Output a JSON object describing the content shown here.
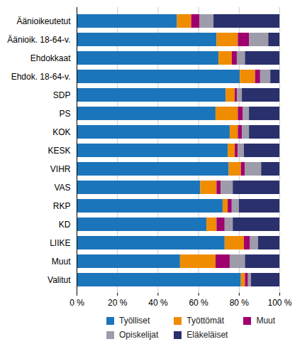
{
  "chart_data": {
    "type": "bar",
    "orientation": "horizontal",
    "stacked": true,
    "grid": true,
    "categories": [
      "Äänioikeutetut",
      "Äänioik. 18-64-v.",
      "Ehdokkaat",
      "Ehdok. 18-64-v.",
      "SDP",
      "PS",
      "KOK",
      "KESK",
      "VIHR",
      "VAS",
      "RKP",
      "KD",
      "LIIKE",
      "Muut",
      "Valitut"
    ],
    "series": [
      {
        "name": "Työlliset",
        "color": "#1b75bb",
        "values": [
          49.5,
          69,
          70,
          80.5,
          73.5,
          68.5,
          75.5,
          74.5,
          75,
          61,
          72,
          64,
          73,
          51,
          81
        ]
      },
      {
        "name": "Työttömät",
        "color": "#f08c00",
        "values": [
          7,
          10.5,
          6.5,
          7.5,
          4.5,
          11,
          4,
          3.5,
          6,
          8,
          2.5,
          5,
          9.5,
          17.5,
          2
        ]
      },
      {
        "name": "Muut",
        "color": "#a0006e",
        "values": [
          4,
          5.5,
          2.5,
          2.5,
          1,
          2.5,
          2,
          1.5,
          2,
          2,
          2,
          4,
          3,
          7,
          1.5
        ]
      },
      {
        "name": "Opiskelijat",
        "color": "#9e9caa",
        "values": [
          7,
          9.5,
          4,
          5,
          2.5,
          3,
          3.5,
          3,
          8,
          6,
          3.5,
          4,
          4,
          7.5,
          1.5
        ]
      },
      {
        "name": "Eläkeläiset",
        "color": "#2a306c",
        "values": [
          32.5,
          5.5,
          17,
          4.5,
          18.5,
          15,
          15,
          17.5,
          9,
          23,
          20,
          23,
          10.5,
          17,
          14
        ]
      }
    ],
    "xlim": [
      0,
      100
    ],
    "xticks": [
      {
        "value": 0,
        "label": "0 %"
      },
      {
        "value": 20,
        "label": "20 %"
      },
      {
        "value": 40,
        "label": "40 %"
      },
      {
        "value": 60,
        "label": "60 %"
      },
      {
        "value": 80,
        "label": "80 %"
      },
      {
        "value": 100,
        "label": "100 %"
      }
    ],
    "legend": "bottom"
  }
}
